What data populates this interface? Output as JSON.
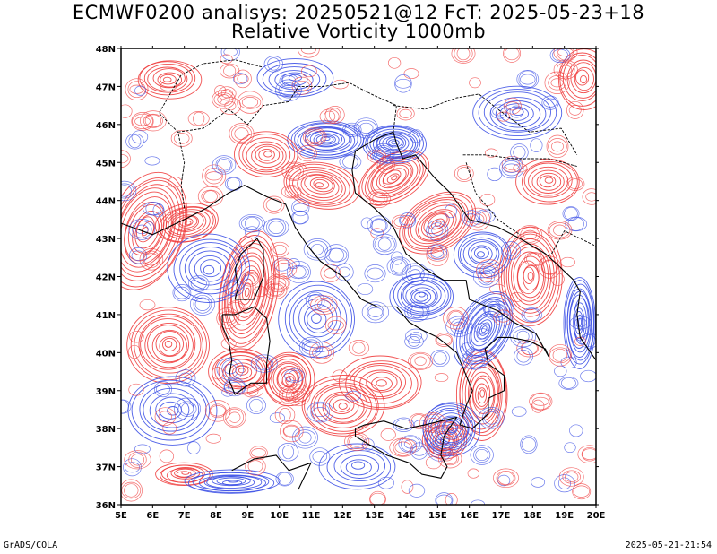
{
  "title": {
    "line1": "ECMWF0200 analisys: 20250521@12 FcT: 2025-05-23+18",
    "line2": "Relative Vorticity 1000mb"
  },
  "map": {
    "lon_range": [
      5,
      20
    ],
    "lat_range": [
      36,
      48
    ],
    "lon_ticks": [
      "5E",
      "6E",
      "7E",
      "8E",
      "9E",
      "10E",
      "11E",
      "12E",
      "13E",
      "14E",
      "15E",
      "16E",
      "17E",
      "18E",
      "19E",
      "20E"
    ],
    "lat_ticks": [
      "36N",
      "37N",
      "38N",
      "39N",
      "40N",
      "41N",
      "42N",
      "43N",
      "44N",
      "45N",
      "46N",
      "47N",
      "48N"
    ],
    "colors": {
      "positive": "#f03c3c",
      "negative": "#3c50e6",
      "coast": "#000000",
      "border": "#000000"
    }
  },
  "footer": {
    "left": "GrADS/COLA",
    "right": "2025-05-21-21:54"
  }
}
